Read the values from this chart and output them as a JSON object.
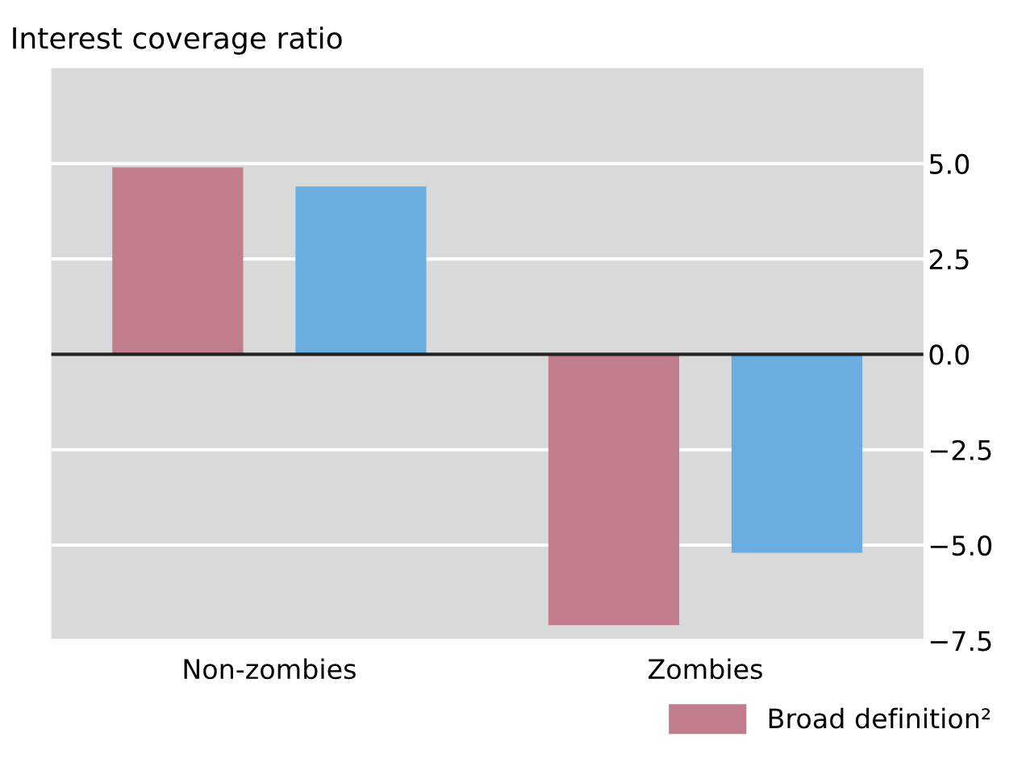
{
  "chart_data": {
    "type": "bar",
    "title": "Interest coverage ratio",
    "categories": [
      "Non-zombies",
      "Zombies"
    ],
    "series": [
      {
        "name": "Broad definition²",
        "color": "#c27d8d",
        "values": [
          4.9,
          -7.1
        ]
      },
      {
        "color": "#6aade0",
        "values": [
          4.4,
          -5.2
        ]
      }
    ],
    "ylim": [
      -7.5,
      7.5
    ],
    "yticks": [
      {
        "value": -7.5,
        "label": "−7.5"
      },
      {
        "value": -5.0,
        "label": "−5.0"
      },
      {
        "value": -2.5,
        "label": "−2.5"
      },
      {
        "value": 0.0,
        "label": "0.0"
      },
      {
        "value": 2.5,
        "label": "2.5"
      },
      {
        "value": 5.0,
        "label": "5.0"
      }
    ],
    "ref_lines": [
      {
        "axis": "y",
        "value": 0,
        "color": "#222222"
      }
    ],
    "grid": "y",
    "legend": "bottom right"
  }
}
